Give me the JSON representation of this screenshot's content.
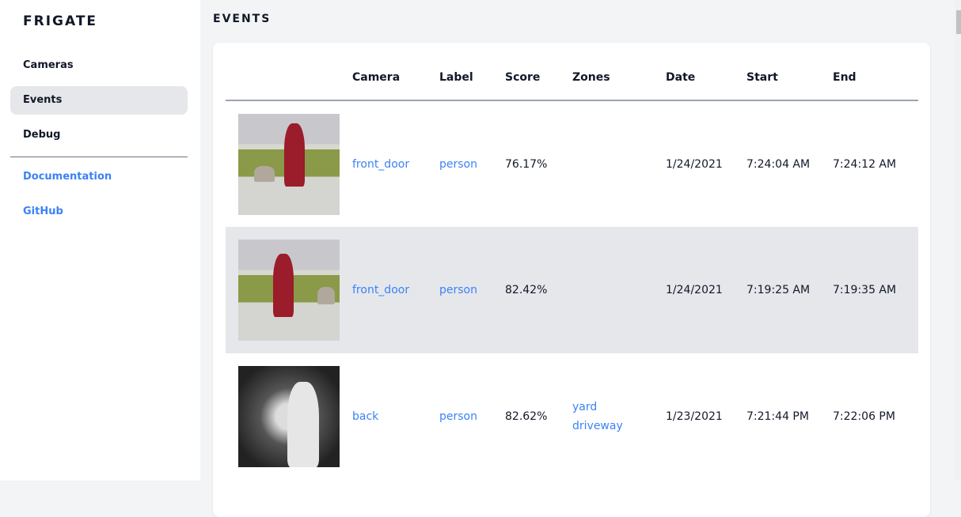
{
  "sidebar": {
    "brand": "FRIGATE",
    "items": [
      {
        "label": "Cameras"
      },
      {
        "label": "Events",
        "active": true
      },
      {
        "label": "Debug"
      }
    ],
    "links": [
      {
        "label": "Documentation"
      },
      {
        "label": "GitHub"
      }
    ]
  },
  "page": {
    "title": "EVENTS"
  },
  "table": {
    "headers": [
      "",
      "Camera",
      "Label",
      "Score",
      "Zones",
      "Date",
      "Start",
      "End"
    ],
    "rows": [
      {
        "camera": "front_door",
        "label": "person",
        "score": "76.17%",
        "zones": [
          "",
          ""
        ],
        "date": "1/24/2021",
        "start": "7:24:04 AM",
        "end": "7:24:12 AM"
      },
      {
        "camera": "front_door",
        "label": "person",
        "score": "82.42%",
        "zones": [
          "",
          ""
        ],
        "date": "1/24/2021",
        "start": "7:19:25 AM",
        "end": "7:19:35 AM"
      },
      {
        "camera": "back",
        "label": "person",
        "score": "82.62%",
        "zones": [
          "yard",
          "driveway"
        ],
        "date": "1/23/2021",
        "start": "7:21:44 PM",
        "end": "7:22:06 PM"
      }
    ]
  },
  "colors": {
    "accent": "#3b82f6",
    "active_bg": "#e5e7eb",
    "page_bg": "#f3f4f6"
  }
}
